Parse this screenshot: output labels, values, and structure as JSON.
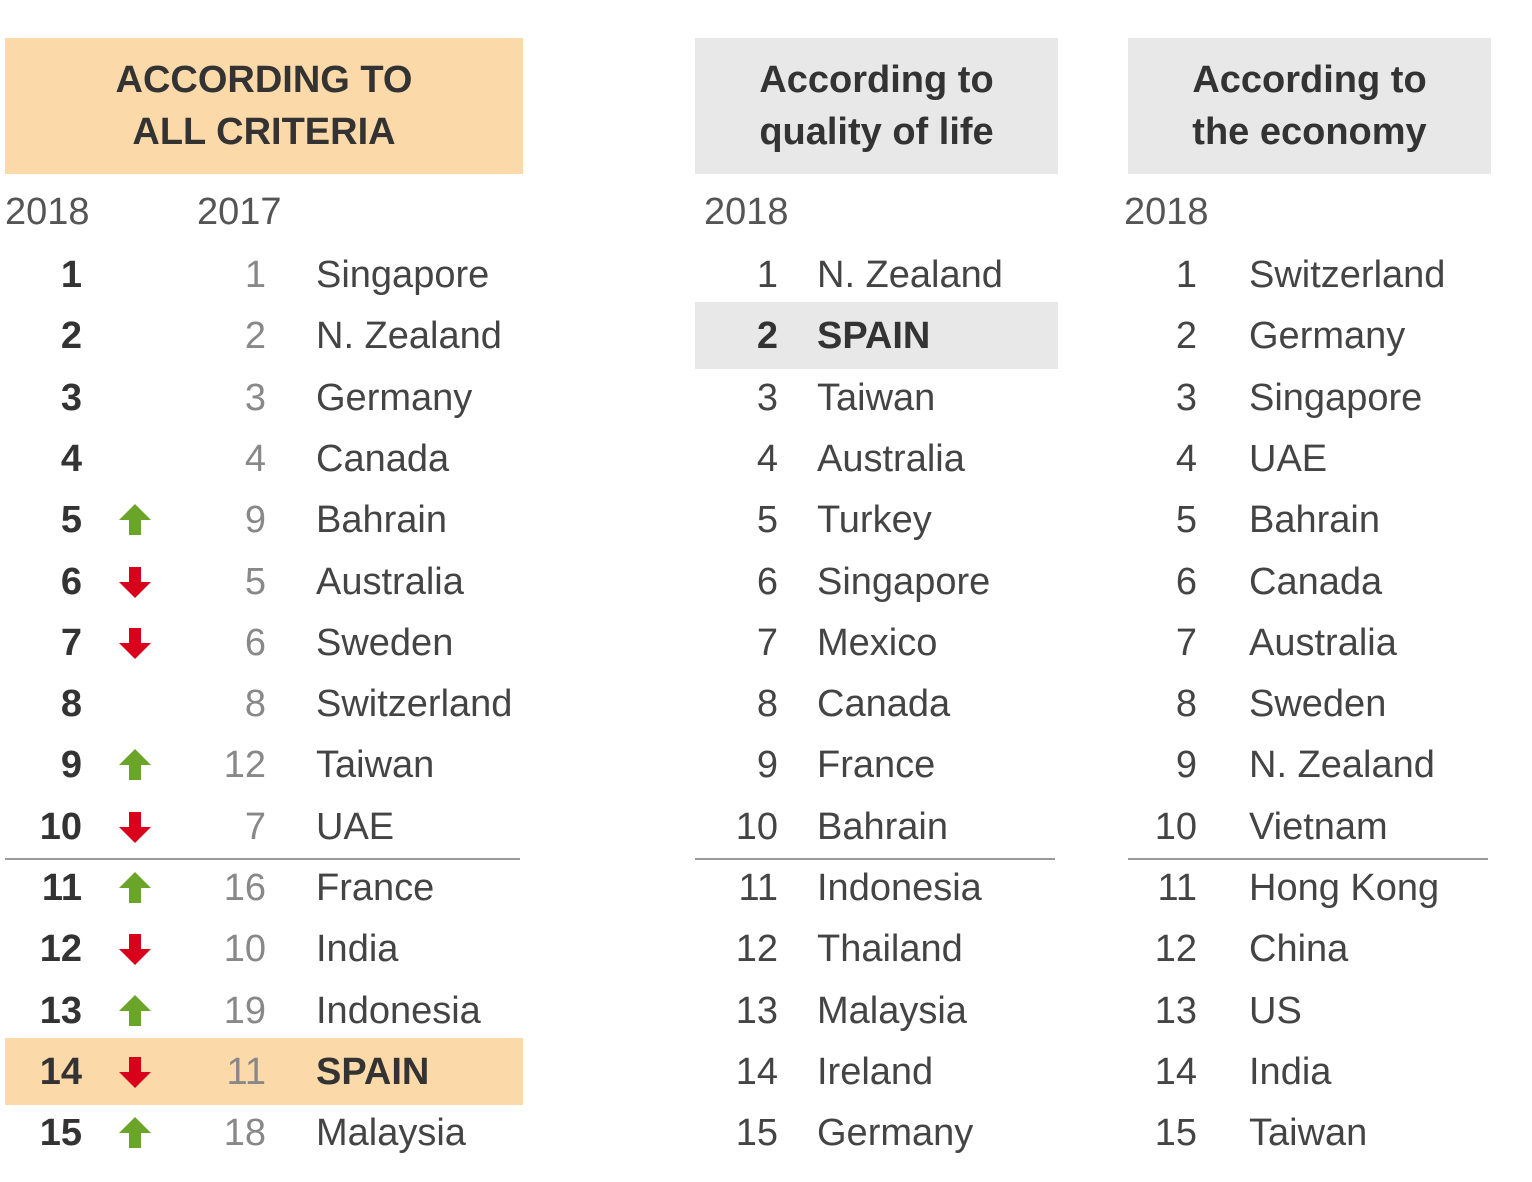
{
  "panels": [
    {
      "header": [
        "ACCORDING TO",
        "ALL CRITERIA"
      ],
      "years": [
        "2018",
        "2017"
      ],
      "rows": [
        {
          "rank": 1,
          "trend": null,
          "previous": 1,
          "country": "Singapore"
        },
        {
          "rank": 2,
          "trend": null,
          "previous": 2,
          "country": "N. Zealand"
        },
        {
          "rank": 3,
          "trend": null,
          "previous": 3,
          "country": "Germany"
        },
        {
          "rank": 4,
          "trend": null,
          "previous": 4,
          "country": "Canada"
        },
        {
          "rank": 5,
          "trend": "up",
          "previous": 9,
          "country": "Bahrain"
        },
        {
          "rank": 6,
          "trend": "down",
          "previous": 5,
          "country": "Australia"
        },
        {
          "rank": 7,
          "trend": "down",
          "previous": 6,
          "country": "Sweden"
        },
        {
          "rank": 8,
          "trend": null,
          "previous": 8,
          "country": "Switzerland"
        },
        {
          "rank": 9,
          "trend": "up",
          "previous": 12,
          "country": "Taiwan"
        },
        {
          "rank": 10,
          "trend": "down",
          "previous": 7,
          "country": "UAE"
        },
        {
          "rank": 11,
          "trend": "up",
          "previous": 16,
          "country": "France"
        },
        {
          "rank": 12,
          "trend": "down",
          "previous": 10,
          "country": "India"
        },
        {
          "rank": 13,
          "trend": "up",
          "previous": 19,
          "country": "Indonesia"
        },
        {
          "rank": 14,
          "trend": "down",
          "previous": 11,
          "country": "SPAIN",
          "highlight": true
        },
        {
          "rank": 15,
          "trend": "up",
          "previous": 18,
          "country": "Malaysia"
        }
      ]
    },
    {
      "header": [
        "According to",
        "quality of life"
      ],
      "years": [
        "2018"
      ],
      "rows": [
        {
          "rank": 1,
          "country": "N. Zealand"
        },
        {
          "rank": 2,
          "country": "SPAIN",
          "highlight": true
        },
        {
          "rank": 3,
          "country": "Taiwan"
        },
        {
          "rank": 4,
          "country": "Australia"
        },
        {
          "rank": 5,
          "country": "Turkey"
        },
        {
          "rank": 6,
          "country": "Singapore"
        },
        {
          "rank": 7,
          "country": "Mexico"
        },
        {
          "rank": 8,
          "country": "Canada"
        },
        {
          "rank": 9,
          "country": "France"
        },
        {
          "rank": 10,
          "country": "Bahrain"
        },
        {
          "rank": 11,
          "country": "Indonesia"
        },
        {
          "rank": 12,
          "country": "Thailand"
        },
        {
          "rank": 13,
          "country": "Malaysia"
        },
        {
          "rank": 14,
          "country": "Ireland"
        },
        {
          "rank": 15,
          "country": "Germany"
        }
      ]
    },
    {
      "header": [
        "According to",
        "the economy"
      ],
      "years": [
        "2018"
      ],
      "rows": [
        {
          "rank": 1,
          "country": "Switzerland"
        },
        {
          "rank": 2,
          "country": "Germany"
        },
        {
          "rank": 3,
          "country": "Singapore"
        },
        {
          "rank": 4,
          "country": "UAE"
        },
        {
          "rank": 5,
          "country": "Bahrain"
        },
        {
          "rank": 6,
          "country": "Canada"
        },
        {
          "rank": 7,
          "country": "Australia"
        },
        {
          "rank": 8,
          "country": "Sweden"
        },
        {
          "rank": 9,
          "country": "N. Zealand"
        },
        {
          "rank": 10,
          "country": "Vietnam"
        },
        {
          "rank": 11,
          "country": "Hong Kong"
        },
        {
          "rank": 12,
          "country": "China"
        },
        {
          "rank": 13,
          "country": "US"
        },
        {
          "rank": 14,
          "country": "India"
        },
        {
          "rank": 15,
          "country": "Taiwan"
        }
      ]
    }
  ]
}
